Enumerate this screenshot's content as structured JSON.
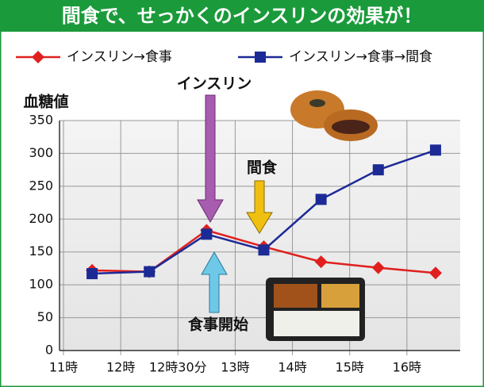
{
  "chart_data": {
    "type": "line",
    "title": "間食で、せっかくのインスリンの効果が！",
    "y_label": "血糖値",
    "categories": [
      "11時",
      "12時",
      "12時30分",
      "13時",
      "14時",
      "15時",
      "16時"
    ],
    "series": [
      {
        "name": "インスリン→食事",
        "color": "#e0201e",
        "marker": "diamond",
        "values": [
          122,
          120,
          183,
          158,
          135,
          126,
          118
        ]
      },
      {
        "name": "インスリン→食事→間食",
        "color": "#1c2a96",
        "marker": "square",
        "values": [
          117,
          120,
          177,
          153,
          230,
          275,
          305
        ]
      }
    ],
    "ylim": [
      0,
      350
    ],
    "yticks": [
      0,
      50,
      100,
      150,
      200,
      250,
      300,
      350
    ],
    "grid": true,
    "annotations": [
      "インスリン",
      "間食",
      "食事開始"
    ]
  }
}
